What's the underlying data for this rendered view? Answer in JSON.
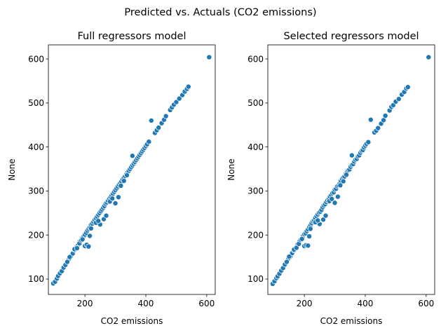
{
  "figure": {
    "suptitle": "Predicted vs. Actuals (CO2 emissions)"
  },
  "colors": {
    "marker": "#1f77b4",
    "marker_edge": "#ffffff"
  },
  "chart_data": [
    {
      "type": "scatter",
      "title": "Full regressors model",
      "xlabel": "CO2 emissions",
      "ylabel": "None",
      "xlim": [
        80,
        628
      ],
      "ylim": [
        65,
        632
      ],
      "xticks": [
        200,
        400,
        600
      ],
      "yticks": [
        100,
        200,
        300,
        400,
        500,
        600
      ],
      "xtick_labels": [
        "200",
        "400",
        "600"
      ],
      "ytick_labels": [
        "100",
        "200",
        "300",
        "400",
        "500",
        "600"
      ],
      "x": [
        96,
        102,
        108,
        112,
        118,
        124,
        130,
        136,
        142,
        148,
        154,
        160,
        166,
        172,
        178,
        184,
        190,
        196,
        200,
        204,
        208,
        212,
        216,
        220,
        224,
        228,
        232,
        236,
        240,
        244,
        248,
        252,
        256,
        260,
        264,
        268,
        272,
        276,
        280,
        284,
        288,
        292,
        296,
        300,
        304,
        308,
        312,
        316,
        320,
        324,
        328,
        332,
        336,
        340,
        344,
        348,
        352,
        356,
        360,
        364,
        368,
        372,
        376,
        380,
        384,
        388,
        392,
        396,
        400,
        404,
        410,
        430,
        436,
        442,
        452,
        460,
        466,
        480,
        486,
        492,
        500,
        510,
        520,
        528,
        535,
        540,
        608,
        200,
        206,
        212,
        216,
        250,
        262,
        270,
        300,
        310,
        356,
        418,
        142,
        150,
        166,
        174,
        182,
        188,
        192,
        220,
        236,
        244,
        282,
        290,
        318,
        328,
        338
      ],
      "y": [
        90,
        94,
        101,
        107,
        113,
        118,
        126,
        132,
        139,
        146,
        152,
        158,
        166,
        172,
        178,
        186,
        192,
        197,
        201,
        205,
        210,
        214,
        217,
        223,
        226,
        230,
        234,
        238,
        242,
        246,
        250,
        254,
        258,
        262,
        266,
        271,
        274,
        278,
        282,
        286,
        290,
        294,
        298,
        302,
        306,
        310,
        314,
        318,
        322,
        326,
        330,
        334,
        338,
        342,
        346,
        350,
        354,
        358,
        362,
        366,
        370,
        374,
        378,
        382,
        386,
        390,
        394,
        398,
        402,
        406,
        412,
        432,
        438,
        444,
        454,
        462,
        470,
        484,
        490,
        496,
        502,
        510,
        518,
        526,
        532,
        537,
        604,
        175,
        178,
        174,
        198,
        224,
        236,
        244,
        272,
        286,
        380,
        460,
        139,
        150,
        168,
        170,
        181,
        188,
        190,
        215,
        228,
        232,
        276,
        283,
        312,
        323,
        336
      ]
    },
    {
      "type": "scatter",
      "title": "Selected regressors model",
      "xlabel": "CO2 emissions",
      "ylabel": "None",
      "xlim": [
        80,
        628
      ],
      "ylim": [
        65,
        632
      ],
      "xticks": [
        200,
        400,
        600
      ],
      "yticks": [
        100,
        200,
        300,
        400,
        500,
        600
      ],
      "xtick_labels": [
        "200",
        "400",
        "600"
      ],
      "ytick_labels": [
        "100",
        "200",
        "300",
        "400",
        "500",
        "600"
      ],
      "x": [
        96,
        102,
        108,
        112,
        118,
        124,
        130,
        136,
        142,
        148,
        154,
        160,
        166,
        172,
        178,
        184,
        190,
        196,
        200,
        204,
        208,
        212,
        216,
        220,
        224,
        228,
        232,
        236,
        240,
        244,
        248,
        252,
        256,
        260,
        264,
        268,
        272,
        276,
        280,
        284,
        288,
        292,
        296,
        300,
        304,
        308,
        312,
        316,
        320,
        324,
        328,
        332,
        336,
        340,
        344,
        348,
        352,
        356,
        360,
        364,
        368,
        372,
        376,
        380,
        384,
        388,
        392,
        396,
        400,
        404,
        410,
        430,
        436,
        442,
        452,
        460,
        466,
        480,
        486,
        492,
        500,
        510,
        520,
        528,
        535,
        540,
        608,
        200,
        206,
        212,
        216,
        250,
        262,
        270,
        300,
        310,
        356,
        418,
        142,
        150,
        166,
        174,
        182,
        188,
        192,
        220,
        236,
        244,
        282,
        290,
        318,
        328,
        338
      ],
      "y": [
        89,
        95,
        102,
        106,
        112,
        119,
        125,
        133,
        140,
        147,
        151,
        159,
        165,
        171,
        179,
        185,
        191,
        198,
        202,
        204,
        209,
        213,
        218,
        222,
        227,
        231,
        233,
        239,
        243,
        247,
        251,
        253,
        257,
        263,
        267,
        270,
        275,
        279,
        281,
        287,
        291,
        295,
        297,
        303,
        305,
        311,
        313,
        317,
        323,
        327,
        331,
        333,
        339,
        343,
        347,
        349,
        355,
        359,
        361,
        367,
        371,
        373,
        379,
        381,
        387,
        391,
        393,
        399,
        403,
        407,
        411,
        433,
        437,
        443,
        453,
        461,
        471,
        483,
        491,
        495,
        503,
        509,
        519,
        525,
        533,
        536,
        604,
        175,
        177,
        176,
        197,
        225,
        235,
        244,
        273,
        287,
        381,
        462,
        139,
        151,
        167,
        171,
        180,
        189,
        191,
        214,
        229,
        233,
        277,
        282,
        313,
        322,
        337
      ]
    }
  ]
}
